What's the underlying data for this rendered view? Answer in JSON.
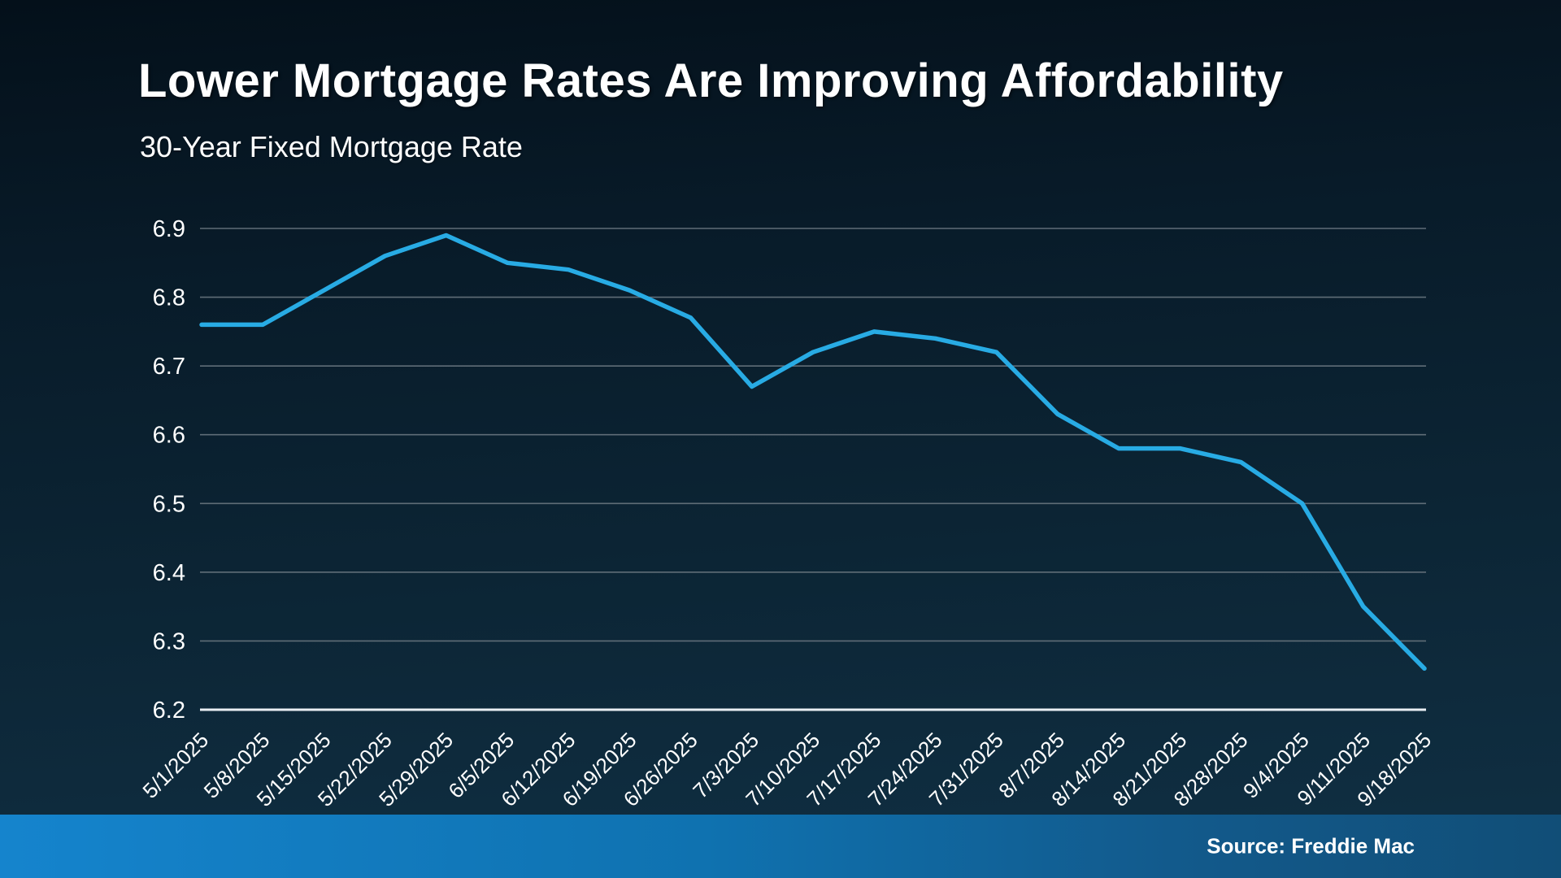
{
  "slide": {
    "title": "Lower Mortgage Rates Are Improving Affordability",
    "subtitle": "30-Year Fixed Mortgage Rate",
    "source": "Source: Freddie Mac"
  },
  "theme": {
    "background_top": "#04101a",
    "background_bottom": "#103044",
    "line_color": "#28abe4",
    "grid_color": "#5f6d77",
    "axis_color": "#e9eef3",
    "label_color": "#ffffff",
    "footer_gradient_left": "#1584cd",
    "footer_gradient_right": "#114e77"
  },
  "chart_data": {
    "type": "line",
    "title": "Lower Mortgage Rates Are Improving Affordability",
    "subtitle": "30-Year Fixed Mortgage Rate",
    "series_name": "30-Year Fixed Mortgage Rate",
    "x": [
      "5/1/2025",
      "5/8/2025",
      "5/15/2025",
      "5/22/2025",
      "5/29/2025",
      "6/5/2025",
      "6/12/2025",
      "6/19/2025",
      "6/26/2025",
      "7/3/2025",
      "7/10/2025",
      "7/17/2025",
      "7/24/2025",
      "7/31/2025",
      "8/7/2025",
      "8/14/2025",
      "8/21/2025",
      "8/28/2025",
      "9/4/2025",
      "9/11/2025",
      "9/18/2025"
    ],
    "values": [
      6.76,
      6.76,
      6.81,
      6.86,
      6.89,
      6.85,
      6.84,
      6.81,
      6.77,
      6.67,
      6.72,
      6.75,
      6.74,
      6.72,
      6.63,
      6.58,
      6.58,
      6.56,
      6.5,
      6.35,
      6.26
    ],
    "ylim": [
      6.2,
      6.9
    ],
    "ytick_step": 0.1,
    "ytick_labels": [
      "6.2",
      "6.3",
      "6.4",
      "6.5",
      "6.6",
      "6.7",
      "6.8",
      "6.9"
    ],
    "grid": true,
    "legend": false,
    "source": "Source: Freddie Mac"
  }
}
